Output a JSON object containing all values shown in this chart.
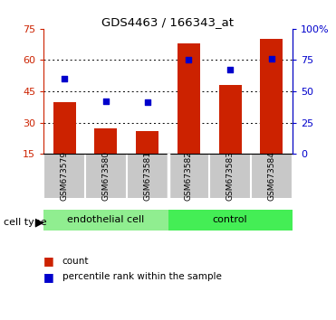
{
  "title": "GDS4463 / 166343_at",
  "samples": [
    "GSM673579",
    "GSM673580",
    "GSM673581",
    "GSM673582",
    "GSM673583",
    "GSM673584"
  ],
  "counts": [
    40,
    27,
    26,
    68,
    48,
    70
  ],
  "percentiles": [
    60,
    42,
    41,
    75,
    67,
    76
  ],
  "left_ylim": [
    15,
    75
  ],
  "right_ylim": [
    0,
    100
  ],
  "left_yticks": [
    15,
    30,
    45,
    60,
    75
  ],
  "right_yticks": [
    0,
    25,
    50,
    75,
    100
  ],
  "right_yticklabels": [
    "0",
    "25",
    "50",
    "75",
    "100%"
  ],
  "left_yticklabels": [
    "15",
    "30",
    "45",
    "60",
    "75"
  ],
  "bar_color": "#CC2200",
  "dot_color": "#0000CC",
  "bar_width": 0.55,
  "bg_color": "#FFFFFF",
  "tick_color_left": "#CC2200",
  "tick_color_right": "#0000CC",
  "xtick_bg": "#C8C8C8",
  "group_color_1": "#90EE90",
  "group_color_2": "#44EE55",
  "group_label_1": "endothelial cell",
  "group_label_2": "control",
  "group_split": 2.5,
  "legend_count_label": "count",
  "legend_pct_label": "percentile rank within the sample"
}
